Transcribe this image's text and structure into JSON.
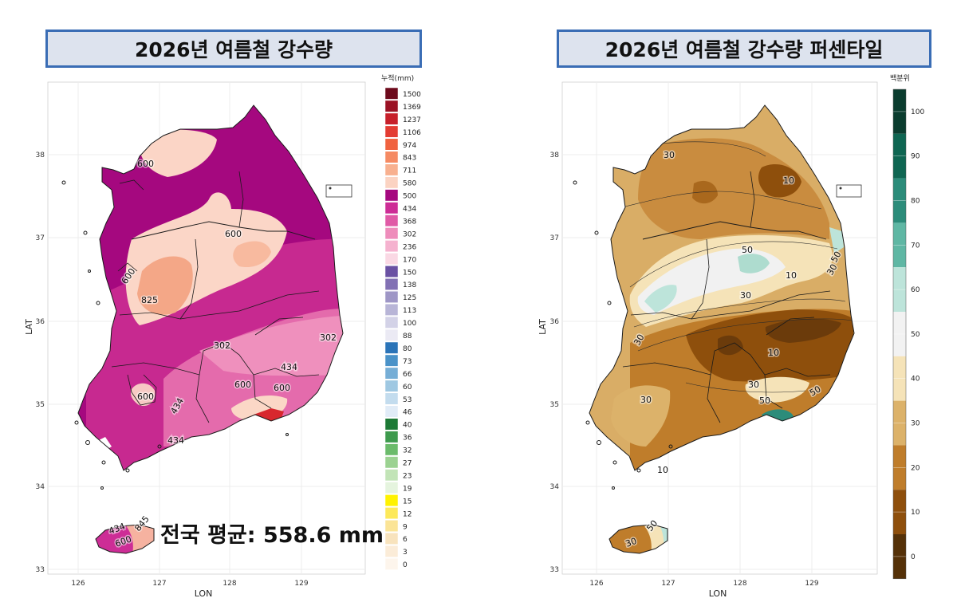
{
  "left_panel": {
    "title": "2026년 여름철 강수량",
    "x_label": "LON",
    "y_label": "LAT",
    "x_ticks": [
      "126",
      "127",
      "128",
      "129"
    ],
    "y_ticks": [
      "33",
      "34",
      "35",
      "36",
      "37",
      "38"
    ],
    "legend_title": "누적(mm)",
    "legend": [
      {
        "label": "1500",
        "color": "#6d0a1c"
      },
      {
        "label": "1369",
        "color": "#9b1224"
      },
      {
        "label": "1237",
        "color": "#c71f2a"
      },
      {
        "label": "1106",
        "color": "#e33b32"
      },
      {
        "label": "974",
        "color": "#f0623f"
      },
      {
        "label": "843",
        "color": "#f58a63"
      },
      {
        "label": "711",
        "color": "#f8b08f"
      },
      {
        "label": "580",
        "color": "#fbd3c2"
      },
      {
        "label": "500",
        "color": "#a5087f"
      },
      {
        "label": "434",
        "color": "#cd2d96"
      },
      {
        "label": "368",
        "color": "#e05aa6"
      },
      {
        "label": "302",
        "color": "#ee8cbb"
      },
      {
        "label": "236",
        "color": "#f5b2cf"
      },
      {
        "label": "170",
        "color": "#fad8e4"
      },
      {
        "label": "150",
        "color": "#6a51a3"
      },
      {
        "label": "138",
        "color": "#8271b4"
      },
      {
        "label": "125",
        "color": "#9e96c6"
      },
      {
        "label": "113",
        "color": "#b8b5d7"
      },
      {
        "label": "100",
        "color": "#d3d2e7"
      },
      {
        "label": "88",
        "color": "#ebeaf4"
      },
      {
        "label": "80",
        "color": "#2b74b8"
      },
      {
        "label": "73",
        "color": "#4a92c8"
      },
      {
        "label": "66",
        "color": "#76aed6"
      },
      {
        "label": "60",
        "color": "#9fc8e2"
      },
      {
        "label": "53",
        "color": "#c3dcee"
      },
      {
        "label": "46",
        "color": "#e1ecf7"
      },
      {
        "label": "40",
        "color": "#1d7a36"
      },
      {
        "label": "36",
        "color": "#3e9a4d"
      },
      {
        "label": "32",
        "color": "#6bbb6b"
      },
      {
        "label": "27",
        "color": "#9bd291"
      },
      {
        "label": "23",
        "color": "#c2e4b7"
      },
      {
        "label": "19",
        "color": "#e5f4de"
      },
      {
        "label": "15",
        "color": "#fff200"
      },
      {
        "label": "12",
        "color": "#fde95a"
      },
      {
        "label": "9",
        "color": "#fbe496"
      },
      {
        "label": "6",
        "color": "#f8e3bd"
      },
      {
        "label": "3",
        "color": "#fbecd8"
      },
      {
        "label": "0",
        "color": "#fdf5ec"
      }
    ],
    "contour_labels": [
      "600",
      "600",
      "600",
      "825",
      "302",
      "302",
      "434",
      "434",
      "600",
      "600",
      "600",
      "434",
      "434",
      "600",
      "845"
    ],
    "national_average": "전국 평균: 558.6 mm"
  },
  "right_panel": {
    "title": "2026년 여름철 강수량 퍼센타일",
    "x_label": "LON",
    "y_label": "LAT",
    "x_ticks": [
      "126",
      "127",
      "128",
      "129"
    ],
    "y_ticks": [
      "33",
      "34",
      "35",
      "36",
      "37",
      "38"
    ],
    "legend_title": "백분위",
    "legend": [
      {
        "label": "100",
        "color": "#0b3d2f"
      },
      {
        "label": "90",
        "color": "#0f6652"
      },
      {
        "label": "80",
        "color": "#2c8c7a"
      },
      {
        "label": "70",
        "color": "#5fb7a4"
      },
      {
        "label": "60",
        "color": "#bde4da"
      },
      {
        "label": "50",
        "color": "#f2f2f2"
      },
      {
        "label": "40",
        "color": "#f5e3b8"
      },
      {
        "label": "30",
        "color": "#dcb26a"
      },
      {
        "label": "20",
        "color": "#bf7d2b"
      },
      {
        "label": "10",
        "color": "#8e4f0c"
      },
      {
        "label": "0",
        "color": "#553108"
      }
    ],
    "contour_labels": [
      "30",
      "10",
      "50",
      "50",
      "10",
      "30",
      "30",
      "10",
      "30",
      "30",
      "50",
      "30",
      "50",
      "10",
      "30",
      "50"
    ]
  },
  "colors": {
    "title_border": "#3a6db5",
    "title_fill": "#dde3ee",
    "grid": "#ececec",
    "boundary": "#1a1a1a"
  }
}
